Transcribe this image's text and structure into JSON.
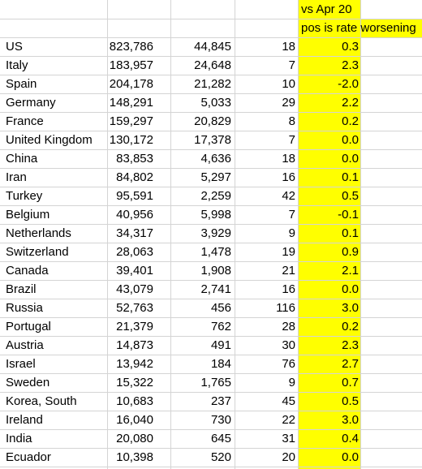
{
  "header": {
    "line1": "vs Apr 20",
    "line2": "pos is rate worsening"
  },
  "rows": [
    {
      "country": "US",
      "cases": "823,786",
      "deaths": "44,845",
      "num": "18",
      "rate": "0.3"
    },
    {
      "country": "Italy",
      "cases": "183,957",
      "deaths": "24,648",
      "num": "7",
      "rate": "2.3"
    },
    {
      "country": "Spain",
      "cases": "204,178",
      "deaths": "21,282",
      "num": "10",
      "rate": "-2.0"
    },
    {
      "country": "Germany",
      "cases": "148,291",
      "deaths": "5,033",
      "num": "29",
      "rate": "2.2"
    },
    {
      "country": "France",
      "cases": "159,297",
      "deaths": "20,829",
      "num": "8",
      "rate": "0.2"
    },
    {
      "country": "United Kingdom",
      "cases": "130,172",
      "deaths": "17,378",
      "num": "7",
      "rate": "0.0"
    },
    {
      "country": "China",
      "cases": "83,853",
      "deaths": "4,636",
      "num": "18",
      "rate": "0.0"
    },
    {
      "country": "Iran",
      "cases": "84,802",
      "deaths": "5,297",
      "num": "16",
      "rate": "0.1"
    },
    {
      "country": "Turkey",
      "cases": "95,591",
      "deaths": "2,259",
      "num": "42",
      "rate": "0.5"
    },
    {
      "country": "Belgium",
      "cases": "40,956",
      "deaths": "5,998",
      "num": "7",
      "rate": "-0.1"
    },
    {
      "country": "Netherlands",
      "cases": "34,317",
      "deaths": "3,929",
      "num": "9",
      "rate": "0.1"
    },
    {
      "country": "Switzerland",
      "cases": "28,063",
      "deaths": "1,478",
      "num": "19",
      "rate": "0.9"
    },
    {
      "country": "Canada",
      "cases": "39,401",
      "deaths": "1,908",
      "num": "21",
      "rate": "2.1"
    },
    {
      "country": "Brazil",
      "cases": "43,079",
      "deaths": "2,741",
      "num": "16",
      "rate": "0.0"
    },
    {
      "country": "Russia",
      "cases": "52,763",
      "deaths": "456",
      "num": "116",
      "rate": "3.0"
    },
    {
      "country": "Portugal",
      "cases": "21,379",
      "deaths": "762",
      "num": "28",
      "rate": "0.2"
    },
    {
      "country": "Austria",
      "cases": "14,873",
      "deaths": "491",
      "num": "30",
      "rate": "2.3"
    },
    {
      "country": "Israel",
      "cases": "13,942",
      "deaths": "184",
      "num": "76",
      "rate": "2.7"
    },
    {
      "country": "Sweden",
      "cases": "15,322",
      "deaths": "1,765",
      "num": "9",
      "rate": "0.7"
    },
    {
      "country": "Korea, South",
      "cases": "10,683",
      "deaths": "237",
      "num": "45",
      "rate": "0.5"
    },
    {
      "country": "Ireland",
      "cases": "16,040",
      "deaths": "730",
      "num": "22",
      "rate": "3.0"
    },
    {
      "country": "India",
      "cases": "20,080",
      "deaths": "645",
      "num": "31",
      "rate": "0.4"
    },
    {
      "country": "Ecuador",
      "cases": "10,398",
      "deaths": "520",
      "num": "20",
      "rate": "0.0"
    }
  ]
}
